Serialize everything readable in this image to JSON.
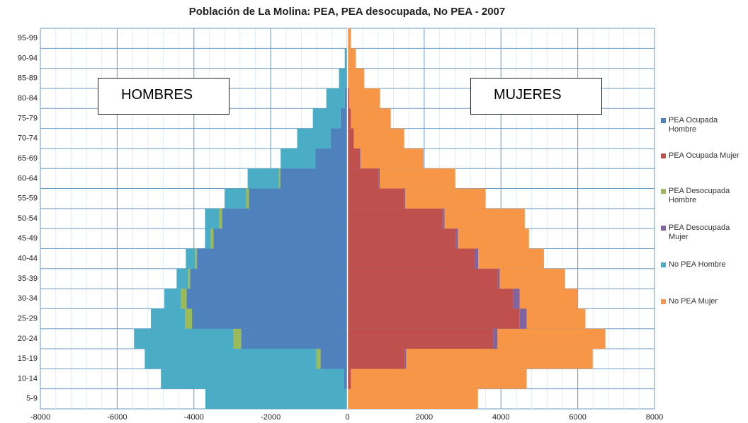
{
  "chart_data": {
    "type": "bar",
    "orientation": "horizontal",
    "stacked": true,
    "title": "Población de La Molina: PEA, PEA desocupada, No PEA - 2007",
    "categories": [
      "5-9",
      "10-14",
      "15-19",
      "20-24",
      "25-29",
      "30-34",
      "35-39",
      "40-44",
      "45-49",
      "50-54",
      "55-59",
      "60-64",
      "65-69",
      "70-74",
      "75-79",
      "80-84",
      "85-89",
      "90-94",
      "95-99"
    ],
    "series": [
      {
        "name": "PEA Ocupada Hombre",
        "color": "#4f81bd",
        "values": [
          0,
          -90,
          -700,
          -2770,
          -4050,
          -4190,
          -4100,
          -3920,
          -3490,
          -3270,
          -2570,
          -1750,
          -830,
          -440,
          -180,
          -70,
          -30,
          0,
          0
        ]
      },
      {
        "name": "PEA Ocupada Mujer",
        "color": "#c0504d",
        "values": [
          0,
          90,
          1500,
          3800,
          4490,
          4320,
          3920,
          3320,
          2830,
          2480,
          1480,
          810,
          330,
          170,
          90,
          50,
          20,
          0,
          0
        ]
      },
      {
        "name": "PEA Desocupada Hombre",
        "color": "#9bbb59",
        "values": [
          0,
          0,
          -110,
          -200,
          -180,
          -150,
          -60,
          -50,
          -70,
          -70,
          -70,
          -40,
          0,
          0,
          0,
          0,
          0,
          0,
          0
        ]
      },
      {
        "name": "PEA Desocupada Mujer",
        "color": "#8064a2",
        "values": [
          0,
          0,
          30,
          110,
          180,
          170,
          50,
          90,
          50,
          50,
          30,
          30,
          10,
          0,
          0,
          0,
          0,
          0,
          0
        ]
      },
      {
        "name": "No PEA Hombre",
        "color": "#4bacc6",
        "values": [
          -3700,
          -4770,
          -4470,
          -2590,
          -890,
          -430,
          -290,
          -240,
          -150,
          -370,
          -560,
          -810,
          -910,
          -870,
          -720,
          -480,
          -190,
          -70,
          -20
        ]
      },
      {
        "name": "No PEA Mujer",
        "color": "#f79646",
        "values": [
          3400,
          4580,
          4860,
          2810,
          1530,
          1510,
          1700,
          1710,
          1850,
          2090,
          2090,
          1970,
          1640,
          1310,
          1040,
          800,
          420,
          220,
          90
        ]
      }
    ],
    "xlim": [
      -8000,
      8000
    ],
    "xticks": [
      -8000,
      -6000,
      -4000,
      -2000,
      0,
      2000,
      4000,
      6000,
      8000
    ],
    "grid": true,
    "annotations": [
      "HOMBRES",
      "MUJERES"
    ]
  }
}
